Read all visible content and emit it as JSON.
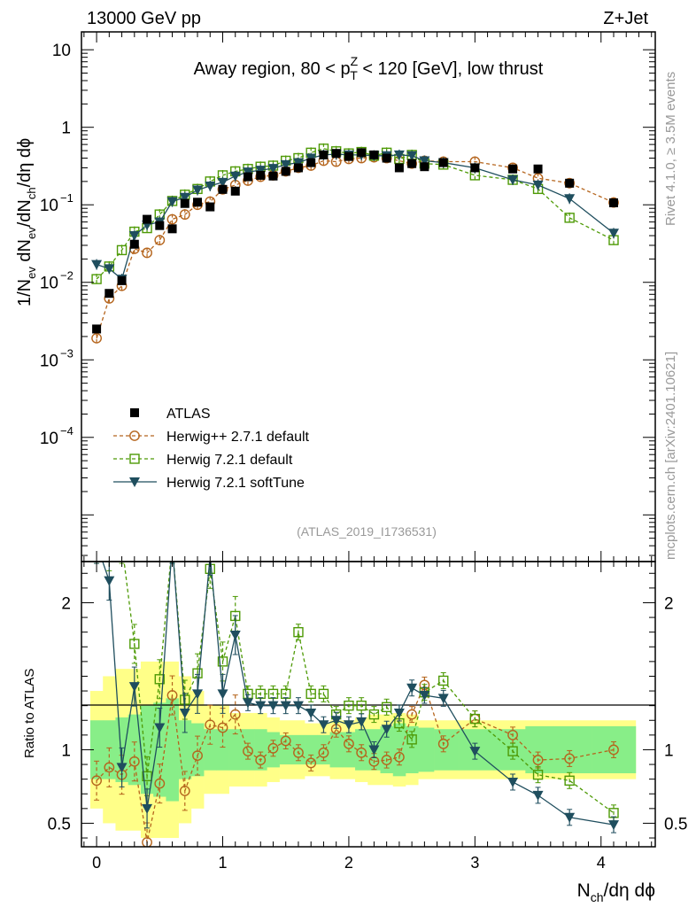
{
  "header": {
    "left": "13000 GeV pp",
    "right": "Z+Jet"
  },
  "side": {
    "rivet": "Rivet 4.1.0, ≥ 3.5M events",
    "mcplots": "mcplots.cern.ch [arXiv:2401.10621]"
  },
  "chart_data": {
    "type": "scatter",
    "title": "Away region, 80 < p_T^Z < 120 [GeV], low thrust",
    "title_parts": {
      "pre": "Away region, 80 < p",
      "sup": "Z",
      "sub": "T",
      "post": " < 120 [GeV], low thrust"
    },
    "analysis_tag": "(ATLAS_2019_I1736531)",
    "xlabel": "N_ch/dη dϕ",
    "xlabel_parts": {
      "main": "N",
      "sub": "ch",
      "rest": "/dη dϕ"
    },
    "ylabel": "1/N_ev dN_ev/dN_ch/dη dϕ",
    "ylabel_parts": {
      "a": "1/N",
      "a_sub": "ev",
      "b": " dN",
      "b_sub": "ev",
      "c": "/dN",
      "c_sub": "ch",
      "d": "/dη dϕ"
    },
    "ratio_ylabel": "Ratio to ATLAS",
    "xlim": [
      -0.12,
      4.43
    ],
    "ylim_main": [
      2.5e-06,
      17
    ],
    "ylim_ratio": [
      0.34,
      2.28
    ],
    "x_ticks": [
      0,
      1,
      2,
      3,
      4
    ],
    "x_tick_labels": [
      "0",
      "1",
      "2",
      "3",
      "4"
    ],
    "y_ticks_main": [
      {
        "value": 10,
        "mant": "10",
        "exp": ""
      },
      {
        "value": 1,
        "mant": "1",
        "exp": ""
      },
      {
        "value": 0.1,
        "mant": "10",
        "exp": "−1"
      },
      {
        "value": 0.01,
        "mant": "10",
        "exp": "−2"
      },
      {
        "value": 0.001,
        "mant": "10",
        "exp": "−3"
      },
      {
        "value": 0.0001,
        "mant": "10",
        "exp": "−4"
      }
    ],
    "y_ticks_ratio": [
      {
        "value": 2,
        "label": "2"
      },
      {
        "value": 1,
        "label": "1"
      },
      {
        "value": 0.5,
        "label": "0.5"
      }
    ],
    "bins": [
      0.0,
      0.1,
      0.2,
      0.3,
      0.4,
      0.5,
      0.6,
      0.7,
      0.8,
      0.9,
      1.0,
      1.1,
      1.2,
      1.3,
      1.4,
      1.5,
      1.6,
      1.7,
      1.8,
      1.9,
      2.0,
      2.1,
      2.2,
      2.3,
      2.4,
      2.5,
      2.6,
      2.75,
      3.0,
      3.3,
      3.5,
      3.75,
      4.1
    ],
    "data_values": [
      0.0025,
      0.0072,
      0.0105,
      0.031,
      0.065,
      0.054,
      0.049,
      0.104,
      0.108,
      0.094,
      0.158,
      0.15,
      0.23,
      0.24,
      0.235,
      0.27,
      0.3,
      0.35,
      0.44,
      0.46,
      0.42,
      0.47,
      0.44,
      0.4,
      0.3,
      0.34,
      0.31,
      0.35,
      0.3,
      0.29,
      0.29,
      0.19,
      0.106
    ],
    "band_inner": [
      0.8,
      0.8,
      0.78,
      0.76,
      0.7,
      0.68,
      0.65,
      0.8,
      0.82,
      0.86,
      0.86,
      0.86,
      0.86,
      0.86,
      0.88,
      0.9,
      0.9,
      0.9,
      0.9,
      0.88,
      0.88,
      0.86,
      0.86,
      0.84,
      0.82,
      0.84,
      0.85,
      0.86,
      0.86,
      0.86,
      0.84,
      0.84,
      0.84
    ],
    "band_outer": [
      0.6,
      0.5,
      0.45,
      0.45,
      0.4,
      0.4,
      0.4,
      0.5,
      0.6,
      0.7,
      0.7,
      0.75,
      0.75,
      0.75,
      0.78,
      0.8,
      0.8,
      0.82,
      0.82,
      0.8,
      0.8,
      0.78,
      0.76,
      0.76,
      0.75,
      0.76,
      0.8,
      0.8,
      0.8,
      0.8,
      0.8,
      0.8,
      0.8
    ],
    "series": [
      {
        "name": "ATLAS",
        "style": "data",
        "color": "#000000",
        "marker": "filled-square",
        "x": [
          0.0,
          0.1,
          0.2,
          0.3,
          0.4,
          0.5,
          0.6,
          0.7,
          0.8,
          0.9,
          1.0,
          1.1,
          1.2,
          1.3,
          1.4,
          1.5,
          1.6,
          1.7,
          1.8,
          1.9,
          2.0,
          2.1,
          2.2,
          2.3,
          2.4,
          2.5,
          2.6,
          2.75,
          3.0,
          3.3,
          3.5,
          3.75,
          4.1
        ],
        "values": [
          0.0025,
          0.0072,
          0.0105,
          0.031,
          0.065,
          0.054,
          0.049,
          0.104,
          0.108,
          0.094,
          0.158,
          0.15,
          0.23,
          0.24,
          0.235,
          0.27,
          0.3,
          0.35,
          0.44,
          0.46,
          0.42,
          0.47,
          0.44,
          0.4,
          0.3,
          0.34,
          0.31,
          0.35,
          0.3,
          0.29,
          0.29,
          0.19,
          0.106
        ]
      },
      {
        "name": "Herwig++ 2.7.1 default",
        "style": "dashed",
        "color": "#b5651d",
        "marker": "open-circle",
        "x": [
          0.0,
          0.1,
          0.2,
          0.3,
          0.4,
          0.5,
          0.6,
          0.7,
          0.8,
          0.9,
          1.0,
          1.1,
          1.2,
          1.3,
          1.4,
          1.5,
          1.6,
          1.7,
          1.8,
          1.9,
          2.0,
          2.1,
          2.2,
          2.3,
          2.4,
          2.5,
          2.6,
          2.75,
          3.0,
          3.3,
          3.5,
          3.75,
          4.1
        ],
        "values": [
          0.0019,
          0.0062,
          0.009,
          0.027,
          0.024,
          0.035,
          0.065,
          0.075,
          0.1,
          0.11,
          0.158,
          0.18,
          0.205,
          0.23,
          0.24,
          0.27,
          0.3,
          0.32,
          0.37,
          0.36,
          0.39,
          0.4,
          0.41,
          0.4,
          0.37,
          0.34,
          0.37,
          0.36,
          0.36,
          0.3,
          0.22,
          0.19,
          0.107
        ],
        "ratio": [
          0.79,
          0.88,
          0.83,
          0.92,
          0.37,
          0.77,
          1.37,
          0.72,
          0.96,
          1.17,
          1.15,
          1.24,
          0.99,
          0.93,
          1.01,
          1.06,
          0.98,
          0.91,
          0.98,
          1.14,
          1.04,
          0.98,
          0.92,
          0.93,
          0.95,
          1.24,
          1.44,
          1.04,
          1.21,
          1.1,
          0.93,
          0.94,
          1.0
        ]
      },
      {
        "name": "Herwig 7.2.1 default",
        "style": "dashed",
        "color": "#4e9a06",
        "marker": "open-square",
        "x": [
          0.0,
          0.1,
          0.2,
          0.3,
          0.4,
          0.5,
          0.6,
          0.7,
          0.8,
          0.9,
          1.0,
          1.1,
          1.2,
          1.3,
          1.4,
          1.5,
          1.6,
          1.7,
          1.8,
          1.9,
          2.0,
          2.1,
          2.2,
          2.3,
          2.4,
          2.5,
          2.6,
          2.75,
          3.0,
          3.3,
          3.5,
          3.75,
          4.1
        ],
        "values": [
          0.011,
          0.016,
          0.026,
          0.045,
          0.05,
          0.075,
          0.112,
          0.135,
          0.16,
          0.2,
          0.24,
          0.27,
          0.29,
          0.31,
          0.32,
          0.37,
          0.4,
          0.47,
          0.53,
          0.49,
          0.46,
          0.48,
          0.43,
          0.47,
          0.39,
          0.44,
          0.34,
          0.33,
          0.24,
          0.21,
          0.16,
          0.068,
          0.035
        ],
        "ratio": [
          2.4,
          2.35,
          2.4,
          1.72,
          0.82,
          1.48,
          2.4,
          1.34,
          1.52,
          2.23,
          1.6,
          1.91,
          1.38,
          1.38,
          1.38,
          1.38,
          1.8,
          1.38,
          1.38,
          1.24,
          1.3,
          1.3,
          1.24,
          1.29,
          1.18,
          1.07,
          1.39,
          1.47,
          1.21,
          0.99,
          0.83,
          0.79,
          0.57
        ]
      },
      {
        "name": "Herwig 7.2.1 softTune",
        "style": "solid",
        "color": "#1f4e5e",
        "marker": "filled-triangle-down",
        "x": [
          0.0,
          0.1,
          0.2,
          0.3,
          0.4,
          0.5,
          0.6,
          0.7,
          0.8,
          0.9,
          1.0,
          1.1,
          1.2,
          1.3,
          1.4,
          1.5,
          1.6,
          1.7,
          1.8,
          1.9,
          2.0,
          2.1,
          2.2,
          2.3,
          2.4,
          2.5,
          2.6,
          2.75,
          3.0,
          3.3,
          3.5,
          3.75,
          4.1
        ],
        "values": [
          0.017,
          0.015,
          0.011,
          0.04,
          0.055,
          0.06,
          0.11,
          0.125,
          0.155,
          0.175,
          0.195,
          0.235,
          0.265,
          0.28,
          0.295,
          0.33,
          0.35,
          0.4,
          0.44,
          0.45,
          0.44,
          0.44,
          0.43,
          0.43,
          0.44,
          0.43,
          0.37,
          0.35,
          0.3,
          0.21,
          0.18,
          0.12,
          0.043
        ],
        "ratio": [
          2.4,
          2.15,
          0.88,
          1.43,
          0.6,
          1.15,
          2.4,
          1.25,
          1.38,
          2.32,
          1.38,
          1.78,
          1.32,
          1.3,
          1.3,
          1.3,
          1.3,
          1.25,
          1.17,
          1.2,
          1.17,
          1.19,
          1.0,
          1.14,
          1.25,
          1.42,
          1.37,
          1.35,
          0.99,
          0.78,
          0.69,
          0.54,
          0.49
        ]
      }
    ],
    "legend": [
      "ATLAS",
      "Herwig++ 2.7.1 default",
      "Herwig 7.2.1 default",
      "Herwig 7.2.1 softTune"
    ],
    "legend_position": "bottom-left"
  }
}
